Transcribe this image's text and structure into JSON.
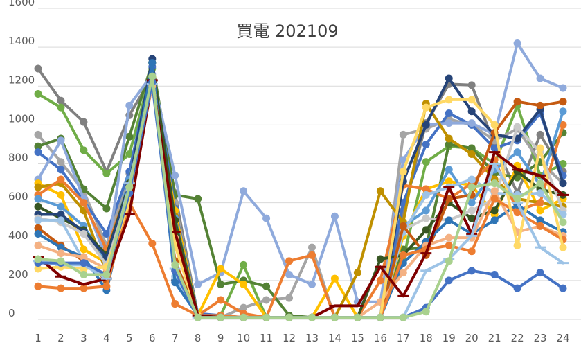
{
  "chart_data": {
    "type": "line",
    "title": "買電 202109",
    "xlabel": "",
    "ylabel": "",
    "x": [
      1,
      2,
      3,
      4,
      5,
      6,
      7,
      8,
      9,
      10,
      11,
      12,
      13,
      14,
      15,
      16,
      17,
      18,
      19,
      20,
      21,
      22,
      23,
      24
    ],
    "x_tick_labels": [
      "1",
      "2",
      "3",
      "4",
      "5",
      "6",
      "7",
      "8",
      "9",
      "10",
      "11",
      "12",
      "13",
      "14",
      "15",
      "16",
      "17",
      "18",
      "19",
      "20",
      "21",
      "22",
      "23",
      "24"
    ],
    "ylim": [
      0,
      1600
    ],
    "y_ticks": [
      0,
      200,
      400,
      600,
      800,
      1000,
      1200,
      1400,
      1600
    ],
    "y_tick_labels": [
      "0",
      "200",
      "400",
      "600",
      "800",
      "1000",
      "1200",
      "1400",
      "1600"
    ],
    "grid": true,
    "legend": "none",
    "series": [
      {
        "color": "#808080",
        "marker": "circle",
        "values": [
          1290,
          1125,
          1015,
          760,
          1050,
          1250,
          650,
          20,
          10,
          10,
          10,
          10,
          10,
          10,
          10,
          10,
          560,
          1010,
          1210,
          1205,
          900,
          650,
          950,
          760
        ]
      },
      {
        "color": "#70ad47",
        "marker": "circle",
        "values": [
          1160,
          1090,
          870,
          750,
          850,
          1290,
          560,
          20,
          20,
          280,
          10,
          10,
          10,
          10,
          10,
          10,
          310,
          810,
          890,
          880,
          800,
          1100,
          740,
          800
        ]
      },
      {
        "color": "#a5a5a5",
        "marker": "circle",
        "values": [
          950,
          810,
          660,
          380,
          750,
          1200,
          600,
          20,
          10,
          60,
          100,
          110,
          370,
          10,
          10,
          10,
          950,
          980,
          1030,
          1000,
          920,
          980,
          810,
          700
        ]
      },
      {
        "color": "#548235",
        "marker": "circle",
        "values": [
          890,
          930,
          670,
          570,
          940,
          1320,
          640,
          620,
          180,
          200,
          170,
          20,
          10,
          10,
          10,
          10,
          360,
          370,
          900,
          880,
          750,
          730,
          810,
          960
        ]
      },
      {
        "color": "#4472c4",
        "marker": "circle",
        "values": [
          860,
          770,
          610,
          440,
          760,
          1300,
          570,
          30,
          20,
          10,
          10,
          10,
          10,
          10,
          10,
          10,
          600,
          900,
          1060,
          1000,
          880,
          920,
          1060,
          740
        ]
      },
      {
        "color": "#8faadc",
        "marker": "circle",
        "values": [
          720,
          920,
          620,
          310,
          1100,
          1260,
          740,
          180,
          240,
          660,
          520,
          230,
          180,
          530,
          90,
          90,
          820,
          1000,
          1010,
          1010,
          950,
          1420,
          1240,
          1190
        ]
      },
      {
        "color": "#ffc000",
        "marker": "circle",
        "values": [
          700,
          640,
          360,
          290,
          650,
          1210,
          560,
          20,
          260,
          180,
          10,
          10,
          10,
          210,
          10,
          10,
          430,
          670,
          710,
          690,
          540,
          790,
          560,
          620
        ]
      },
      {
        "color": "#bf9000",
        "marker": "circle",
        "values": [
          680,
          700,
          560,
          240,
          620,
          1250,
          530,
          20,
          10,
          10,
          10,
          10,
          10,
          10,
          240,
          660,
          500,
          1110,
          930,
          850,
          720,
          620,
          600,
          580
        ]
      },
      {
        "color": "#ed7d31",
        "marker": "circle",
        "values": [
          640,
          720,
          600,
          360,
          690,
          1240,
          450,
          20,
          20,
          10,
          10,
          300,
          330,
          10,
          10,
          200,
          690,
          670,
          620,
          700,
          820,
          560,
          600,
          1000
        ]
      },
      {
        "color": "#5b9bd5",
        "marker": "circle",
        "values": [
          620,
          580,
          480,
          300,
          720,
          1230,
          520,
          20,
          10,
          10,
          10,
          10,
          10,
          10,
          10,
          10,
          480,
          560,
          770,
          600,
          770,
          860,
          690,
          1070
        ]
      },
      {
        "color": "#375623",
        "marker": "circle",
        "values": [
          580,
          520,
          460,
          330,
          700,
          1320,
          510,
          20,
          10,
          10,
          10,
          10,
          10,
          10,
          10,
          310,
          330,
          460,
          600,
          520,
          560,
          760,
          670,
          640
        ]
      },
      {
        "color": "#264478",
        "marker": "circle",
        "values": [
          540,
          540,
          450,
          320,
          690,
          1340,
          200,
          20,
          10,
          10,
          10,
          10,
          10,
          10,
          10,
          10,
          710,
          1000,
          1240,
          1070,
          950,
          930,
          1080,
          700
        ]
      },
      {
        "color": "#c9c9c9",
        "marker": "circle",
        "values": [
          520,
          500,
          440,
          280,
          660,
          1220,
          250,
          20,
          10,
          10,
          10,
          10,
          10,
          10,
          10,
          10,
          460,
          520,
          510,
          560,
          620,
          990,
          860,
          560
        ]
      },
      {
        "color": "#9dc3e6",
        "marker": "circle",
        "values": [
          510,
          510,
          300,
          210,
          640,
          1230,
          220,
          20,
          10,
          10,
          10,
          10,
          10,
          10,
          10,
          10,
          450,
          640,
          680,
          720,
          650,
          640,
          650,
          540
        ]
      },
      {
        "color": "#c55a11",
        "marker": "circle",
        "values": [
          470,
          380,
          300,
          200,
          620,
          1210,
          300,
          20,
          10,
          10,
          10,
          10,
          10,
          10,
          10,
          10,
          480,
          330,
          620,
          640,
          960,
          1120,
          1100,
          1120
        ]
      },
      {
        "color": "#2e75b6",
        "marker": "circle",
        "values": [
          440,
          370,
          320,
          150,
          640,
          1320,
          190,
          20,
          10,
          10,
          10,
          10,
          10,
          10,
          10,
          10,
          290,
          400,
          510,
          440,
          510,
          590,
          510,
          450
        ]
      },
      {
        "color": "#f4b183",
        "marker": "circle",
        "values": [
          380,
          340,
          320,
          260,
          630,
          1200,
          420,
          20,
          10,
          10,
          10,
          10,
          10,
          10,
          10,
          90,
          240,
          380,
          420,
          420,
          660,
          450,
          480,
          430
        ]
      },
      {
        "color": "#ed7d31",
        "marker": "circle",
        "values": [
          170,
          160,
          160,
          170,
          600,
          390,
          80,
          20,
          100,
          30,
          10,
          10,
          10,
          10,
          10,
          10,
          330,
          360,
          380,
          350,
          620,
          550,
          480,
          410
        ]
      },
      {
        "color": "#ffd966",
        "marker": "circle",
        "values": [
          260,
          270,
          260,
          270,
          600,
          1250,
          380,
          20,
          10,
          10,
          10,
          10,
          10,
          10,
          10,
          10,
          760,
          1090,
          1130,
          1130,
          1000,
          380,
          880,
          370
        ]
      },
      {
        "color": "#7f0000",
        "marker": "line",
        "values": [
          320,
          220,
          180,
          210,
          540,
          1230,
          450,
          20,
          10,
          10,
          10,
          10,
          10,
          70,
          70,
          270,
          120,
          340,
          680,
          440,
          860,
          770,
          740,
          640
        ]
      },
      {
        "color": "#9dc3e6",
        "marker": "line",
        "values": [
          300,
          280,
          280,
          210,
          700,
          1210,
          260,
          10,
          10,
          10,
          10,
          10,
          10,
          10,
          10,
          10,
          10,
          250,
          310,
          430,
          800,
          600,
          370,
          290
        ]
      },
      {
        "color": "#4472c4",
        "marker": "circle",
        "values": [
          290,
          290,
          290,
          230,
          650,
          1220,
          250,
          10,
          10,
          10,
          10,
          10,
          10,
          10,
          10,
          10,
          10,
          60,
          200,
          250,
          230,
          160,
          240,
          160
        ]
      },
      {
        "color": "#a9d18e",
        "marker": "circle",
        "values": [
          310,
          300,
          230,
          230,
          680,
          1250,
          280,
          10,
          10,
          10,
          10,
          10,
          10,
          10,
          10,
          10,
          10,
          40,
          300,
          680,
          700,
          620,
          700,
          500
        ]
      }
    ]
  }
}
